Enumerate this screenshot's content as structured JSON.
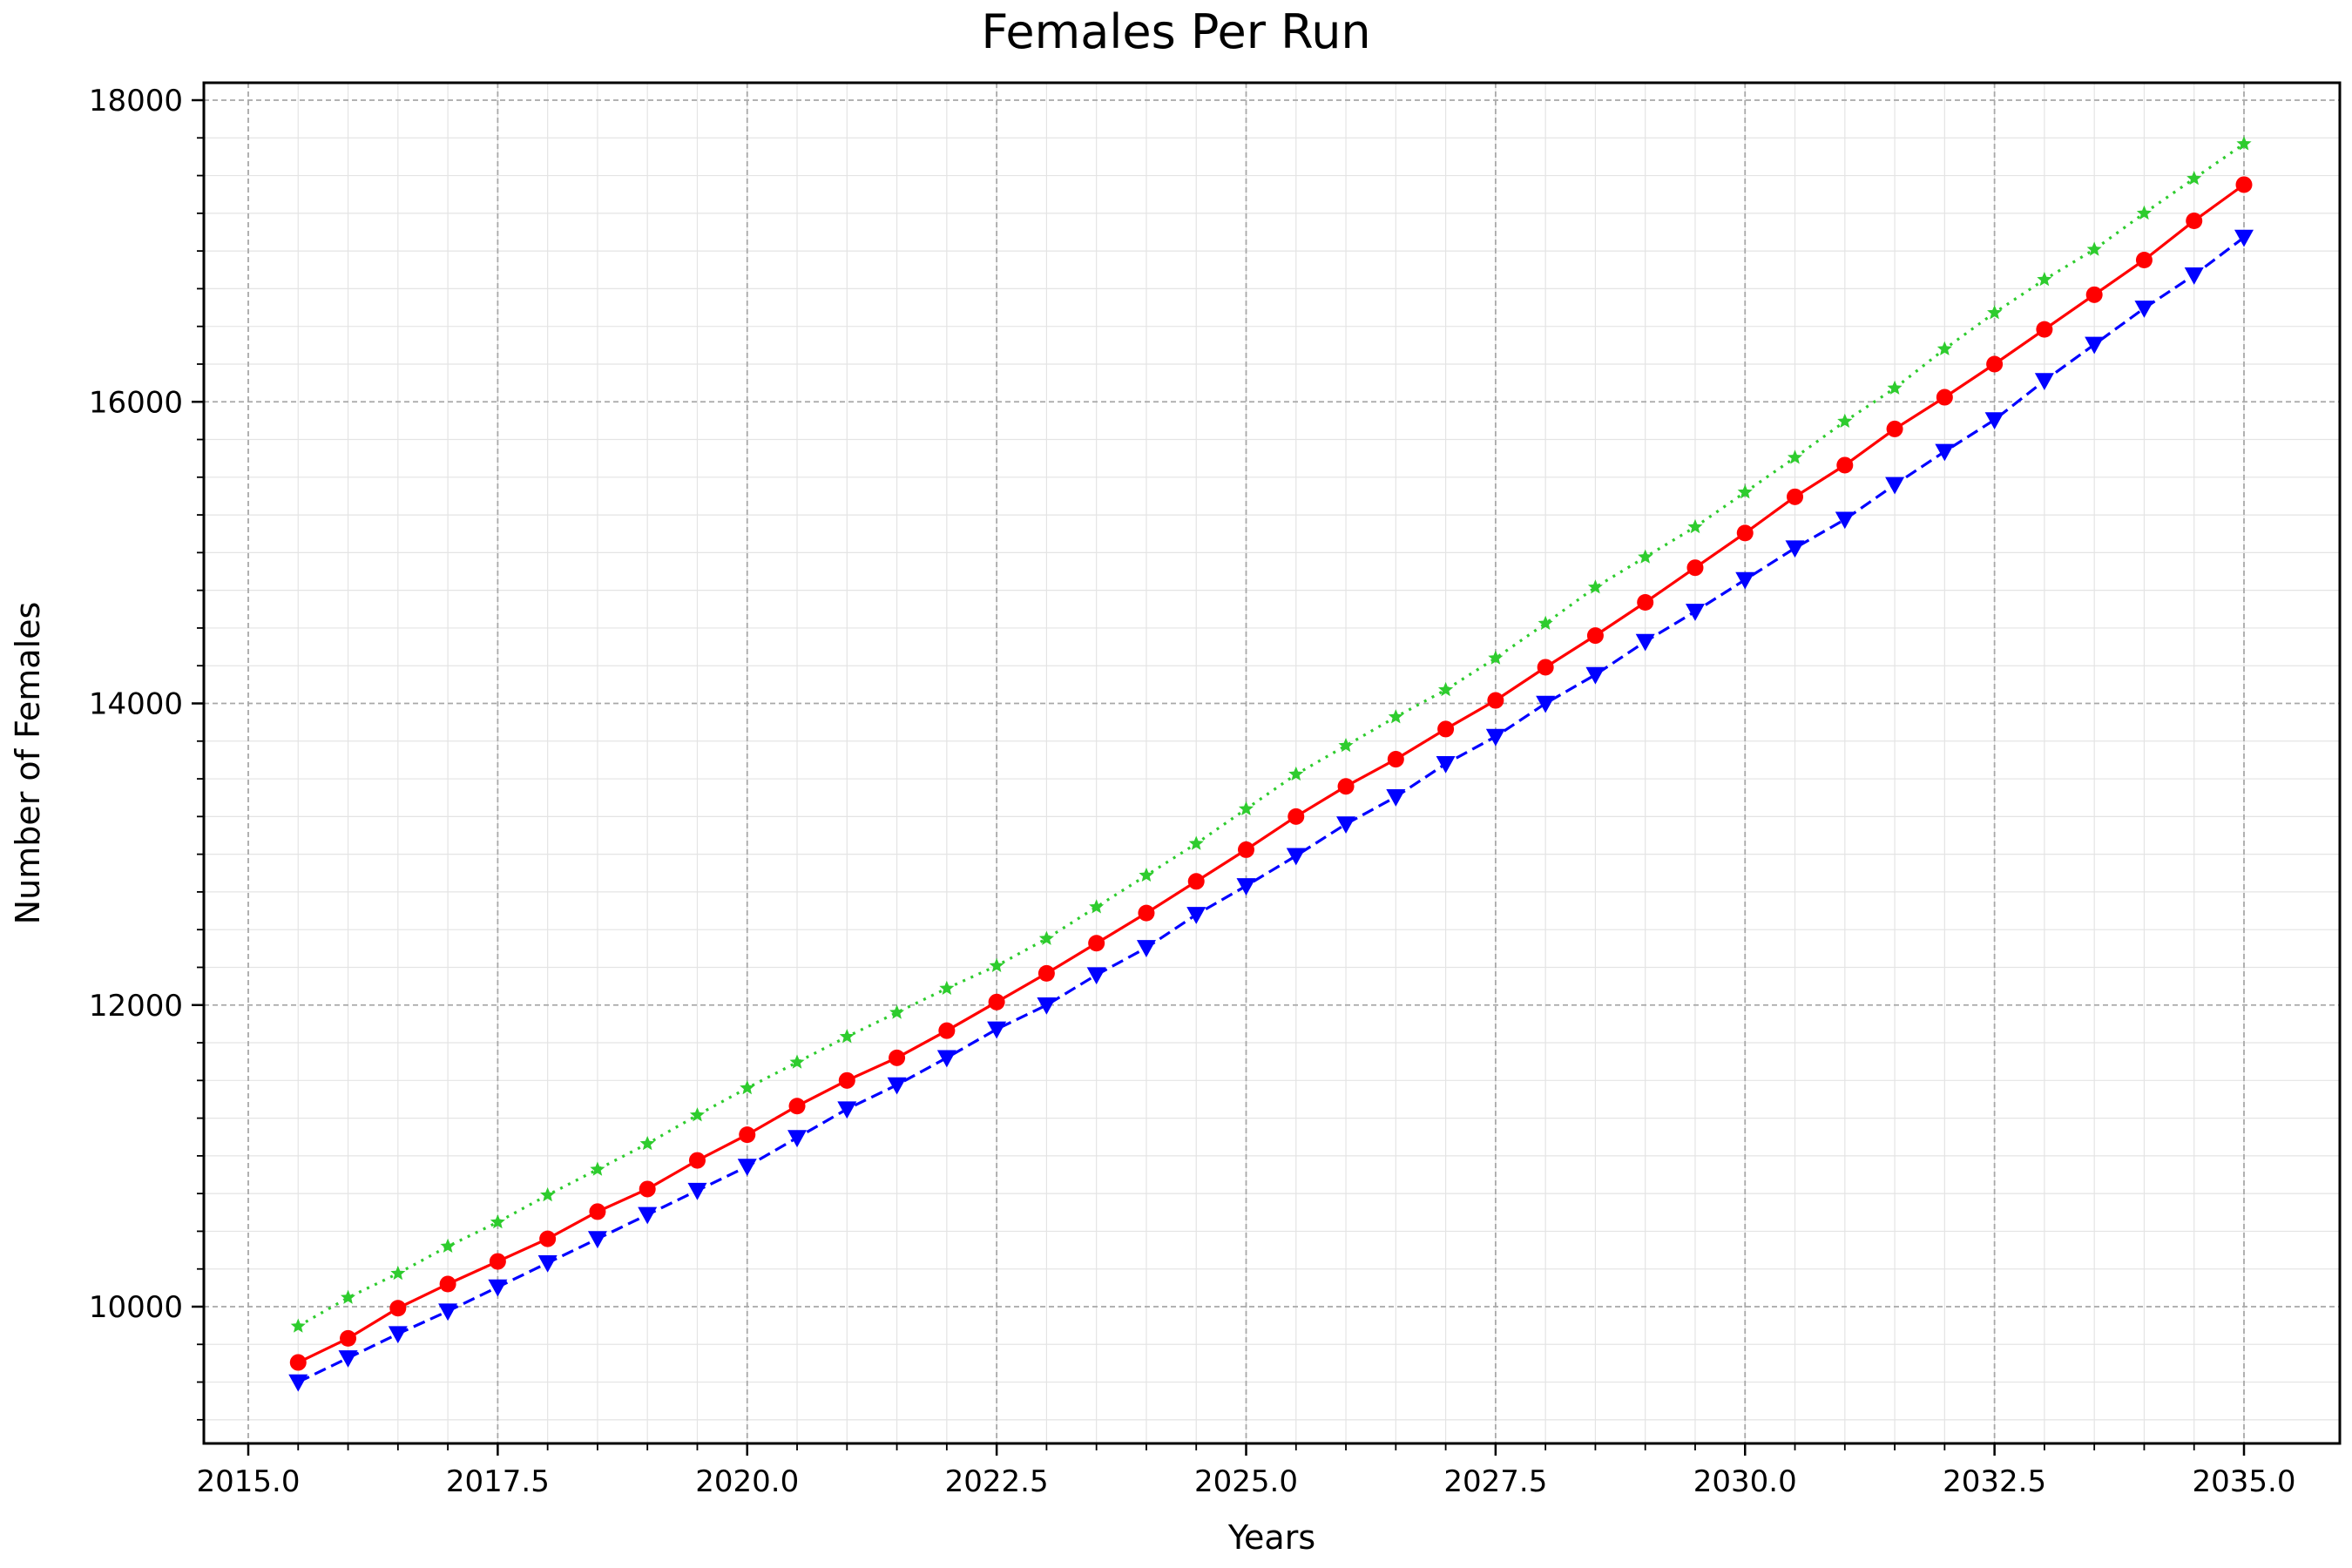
{
  "chart_data": {
    "type": "line",
    "title": "Females Per Run",
    "xlabel": "Years",
    "ylabel": "Number of Females",
    "xlim": [
      2015.0,
      2035.0
    ],
    "ylim": [
      9100,
      18000
    ],
    "xticks": [
      "2015.0",
      "2017.5",
      "2020.0",
      "2022.5",
      "2025.0",
      "2027.5",
      "2030.0",
      "2032.5",
      "2035.0"
    ],
    "yticks": [
      "10000",
      "12000",
      "14000",
      "16000",
      "18000"
    ],
    "grid": true,
    "legend": "none",
    "x": [
      2015.5,
      2016.0,
      2016.5,
      2017.0,
      2017.5,
      2018.0,
      2018.5,
      2019.0,
      2019.5,
      2020.0,
      2020.5,
      2021.0,
      2021.5,
      2022.0,
      2022.5,
      2023.0,
      2023.5,
      2024.0,
      2024.5,
      2025.0,
      2025.5,
      2026.0,
      2026.5,
      2027.0,
      2027.5,
      2028.0,
      2028.5,
      2029.0,
      2029.5,
      2030.0,
      2030.5,
      2031.0,
      2031.5,
      2032.0,
      2032.5,
      2033.0,
      2033.5,
      2034.0,
      2034.5,
      2035.0
    ],
    "series": [
      {
        "color": "#2ecc2e",
        "line": "dotted",
        "marker": "star",
        "values": [
          9870,
          10060,
          10220,
          10400,
          10560,
          10740,
          10910,
          11080,
          11270,
          11450,
          11620,
          11790,
          11950,
          12110,
          12260,
          12440,
          12650,
          12860,
          13070,
          13300,
          13530,
          13720,
          13910,
          14090,
          14300,
          14530,
          14770,
          14970,
          15170,
          15400,
          15630,
          15870,
          16090,
          16350,
          16590,
          16810,
          17010,
          17250,
          17480,
          17710
        ]
      },
      {
        "color": "#ff0000",
        "line": "solid",
        "marker": "circle",
        "values": [
          9630,
          9790,
          9990,
          10150,
          10300,
          10450,
          10630,
          10780,
          10970,
          11140,
          11330,
          11500,
          11650,
          11830,
          12020,
          12210,
          12410,
          12610,
          12820,
          13030,
          13250,
          13450,
          13630,
          13830,
          14020,
          14240,
          14450,
          14670,
          14900,
          15130,
          15370,
          15580,
          15820,
          16030,
          16250,
          16480,
          16710,
          16940,
          17200,
          17440
        ]
      },
      {
        "color": "#0000ff",
        "line": "dashed",
        "marker": "triangle-down",
        "values": [
          9500,
          9660,
          9820,
          9970,
          10130,
          10290,
          10450,
          10610,
          10770,
          10930,
          11120,
          11310,
          11470,
          11650,
          11840,
          12000,
          12200,
          12380,
          12600,
          12790,
          12990,
          13200,
          13380,
          13600,
          13780,
          14000,
          14190,
          14410,
          14610,
          14820,
          15030,
          15220,
          15450,
          15670,
          15880,
          16140,
          16380,
          16620,
          16840,
          17090
        ]
      }
    ]
  }
}
